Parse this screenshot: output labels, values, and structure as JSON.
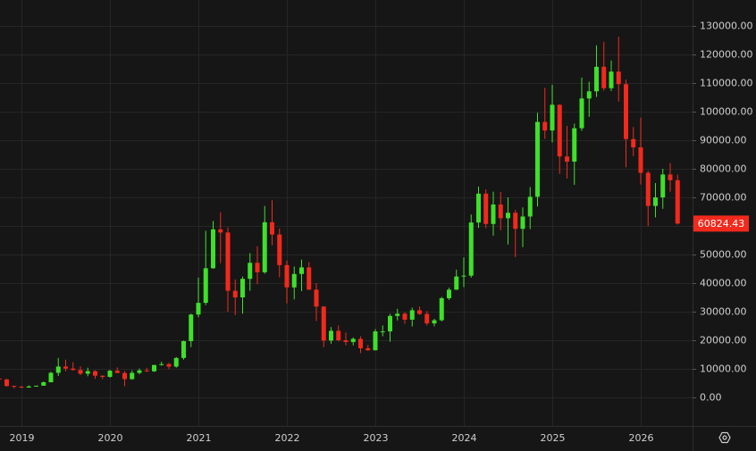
{
  "chart_data": {
    "type": "candlestick",
    "categories": [
      null,
      null,
      null,
      "2019",
      null,
      null,
      null,
      null,
      null,
      null,
      null,
      null,
      null,
      null,
      null,
      "2020",
      null,
      null,
      null,
      null,
      null,
      null,
      null,
      null,
      null,
      null,
      null,
      "2021",
      null,
      null,
      null,
      null,
      null,
      null,
      null,
      null,
      null,
      null,
      null,
      "2022",
      null,
      null,
      null,
      null,
      null,
      null,
      null,
      null,
      null,
      null,
      null,
      "2023",
      null,
      null,
      null,
      null,
      null,
      null,
      null,
      null,
      null,
      null,
      null,
      "2024",
      null,
      null,
      null,
      null,
      null,
      null,
      null,
      null,
      null,
      null,
      null,
      "2025",
      null,
      null,
      null,
      null,
      null,
      null,
      null,
      null,
      null,
      null,
      null,
      "2026",
      null,
      null,
      null,
      null,
      null
    ],
    "open": [
      6600,
      6300,
      4000,
      3700,
      3450,
      3850,
      4100,
      5300,
      8600,
      10800,
      10100,
      9600,
      8300,
      9200,
      7600,
      7200,
      9350,
      8550,
      6400,
      8600,
      9450,
      9140,
      11350,
      11650,
      10780,
      13800,
      19700,
      29000,
      33100,
      45200,
      58800,
      57700,
      37300,
      35000,
      41500,
      47100,
      43800,
      61300,
      57000,
      46300,
      38500,
      43200,
      45500,
      37700,
      31800,
      19900,
      23300,
      20000,
      19400,
      20500,
      17200,
      16500,
      23100,
      23100,
      28500,
      29300,
      27200,
      30500,
      29200,
      25900,
      27000,
      34700,
      37700,
      42300,
      42600,
      61200,
      71300,
      60700,
      67500,
      62700,
      64600,
      59000,
      63300,
      70200,
      96400,
      93400,
      102400,
      84300,
      82500,
      94200,
      104600,
      107100,
      115700,
      108200,
      114000,
      109600,
      90400,
      87500,
      78600,
      67000,
      70000,
      78000,
      76000
    ],
    "high": [
      7400,
      6500,
      4200,
      4100,
      4200,
      4100,
      5600,
      9000,
      13800,
      13200,
      12300,
      10900,
      10400,
      9500,
      7700,
      9600,
      10500,
      9200,
      9500,
      10100,
      10400,
      11400,
      12500,
      12100,
      14100,
      19900,
      29300,
      41900,
      58300,
      61700,
      64800,
      59500,
      41300,
      42300,
      50500,
      52900,
      67000,
      69000,
      59100,
      47900,
      45800,
      48200,
      47400,
      40000,
      31900,
      24600,
      25200,
      22700,
      21000,
      21400,
      18400,
      23900,
      25200,
      29200,
      31000,
      29800,
      31400,
      31800,
      30200,
      27500,
      35200,
      38400,
      44700,
      49000,
      64000,
      73800,
      72800,
      72000,
      71900,
      70000,
      65600,
      66500,
      73600,
      99600,
      108300,
      109400,
      102500,
      95000,
      95800,
      111900,
      110500,
      123200,
      124400,
      117900,
      126200,
      111200,
      94600,
      97900,
      79300,
      75000,
      80000,
      82000,
      78000
    ],
    "low": [
      6300,
      3700,
      3200,
      3400,
      3400,
      3800,
      4100,
      5300,
      7500,
      9100,
      9400,
      7800,
      7400,
      6500,
      6400,
      6900,
      8500,
      3900,
      6200,
      8100,
      8900,
      8900,
      11100,
      9900,
      10400,
      13200,
      17600,
      28100,
      32300,
      45000,
      47000,
      30000,
      28800,
      29300,
      37300,
      39600,
      43300,
      53300,
      42000,
      32900,
      34300,
      37200,
      37600,
      26700,
      17600,
      18800,
      19600,
      18200,
      18200,
      15500,
      16300,
      16500,
      21400,
      19500,
      26900,
      25800,
      24800,
      28900,
      25200,
      24900,
      26600,
      34100,
      37600,
      38600,
      41900,
      59300,
      59200,
      56600,
      58500,
      53500,
      49100,
      52600,
      58900,
      66800,
      90500,
      89200,
      78200,
      76600,
      74400,
      93300,
      98200,
      105100,
      107300,
      107200,
      103500,
      80500,
      84400,
      74500,
      60000,
      63000,
      66000,
      72000,
      60500
    ],
    "close": [
      6300,
      4000,
      3700,
      3450,
      3850,
      4100,
      5300,
      8600,
      10800,
      10100,
      9600,
      8300,
      9200,
      7600,
      7200,
      9350,
      8550,
      6400,
      8600,
      9450,
      9140,
      11350,
      11650,
      10780,
      13800,
      19700,
      29000,
      33100,
      45200,
      58800,
      57700,
      37300,
      35000,
      41500,
      47100,
      43800,
      61300,
      57000,
      46300,
      38500,
      43200,
      45500,
      37700,
      31800,
      19900,
      23300,
      20000,
      19400,
      20500,
      17200,
      16500,
      23100,
      23100,
      28500,
      29300,
      27200,
      30500,
      29200,
      25900,
      27000,
      34700,
      37700,
      42300,
      42600,
      61200,
      71300,
      60700,
      67500,
      62700,
      64600,
      59000,
      63300,
      70200,
      96400,
      93400,
      102400,
      84300,
      82500,
      94200,
      104600,
      107100,
      115700,
      108200,
      114000,
      109600,
      90400,
      87500,
      78600,
      67000,
      70000,
      78000,
      76000,
      60824.43
    ],
    "up_color": "#3ee02a",
    "down_color": "#f2291c",
    "ylim": [
      -10000,
      139062.5
    ],
    "yticks": [
      {
        "value": 0,
        "label": "0.00"
      },
      {
        "value": 10000,
        "label": "10000.00"
      },
      {
        "value": 20000,
        "label": "20000.00"
      },
      {
        "value": 30000,
        "label": "30000.00"
      },
      {
        "value": 40000,
        "label": "40000.00"
      },
      {
        "value": 50000,
        "label": "50000.00"
      },
      {
        "value": 60000,
        "label": "60000.00"
      },
      {
        "value": 70000,
        "label": "70000.00"
      },
      {
        "value": 80000,
        "label": "80000.00"
      },
      {
        "value": 90000,
        "label": "90000.00"
      },
      {
        "value": 100000,
        "label": "100000.00"
      },
      {
        "value": 110000,
        "label": "110000.00"
      },
      {
        "value": 120000,
        "label": "120000.00"
      },
      {
        "value": 130000,
        "label": "130000.00"
      }
    ],
    "grid": true,
    "last_price": {
      "value": 60824.43,
      "label": "60824.43",
      "color": "#f2291c"
    }
  }
}
